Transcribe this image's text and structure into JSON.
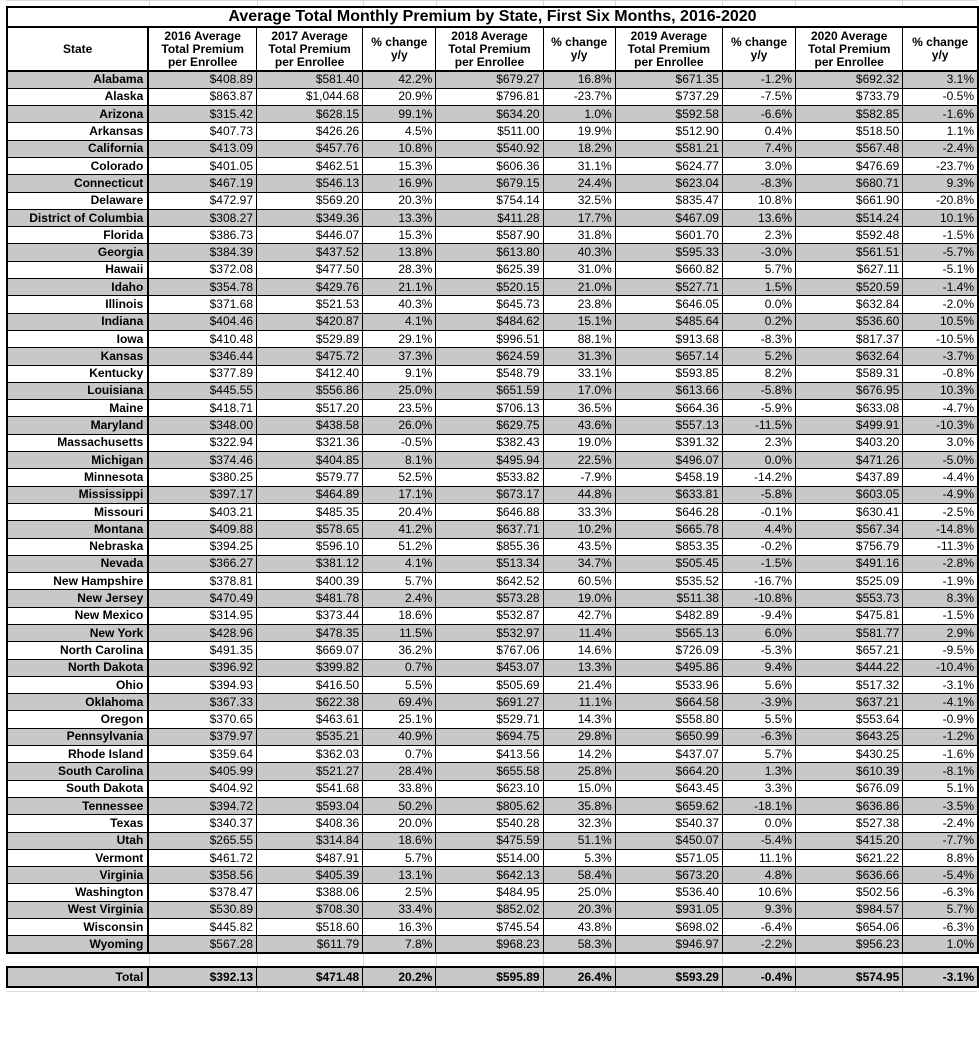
{
  "title": "Average Total Monthly Premium by State, First Six Months, 2016-2020",
  "colors": {
    "shade": "#c8c8c8",
    "border": "#000000",
    "gridline": "#d8d8d8"
  },
  "columns": [
    {
      "label": "State"
    },
    {
      "label": "2016 Average Total Premium per Enrollee"
    },
    {
      "label": "2017 Average Total Premium per Enrollee"
    },
    {
      "label": "% change y/y"
    },
    {
      "label": "2018 Average Total Premium per Enrollee"
    },
    {
      "label": "% change y/y"
    },
    {
      "label": "2019 Average Total Premium per Enrollee"
    },
    {
      "label": "% change y/y"
    },
    {
      "label": "2020 Average Total Premium per Enrollee"
    },
    {
      "label": "% change y/y"
    }
  ],
  "rows": [
    [
      "Alabama",
      "$408.89",
      "$581.40",
      "42.2%",
      "$679.27",
      "16.8%",
      "$671.35",
      "-1.2%",
      "$692.32",
      "3.1%"
    ],
    [
      "Alaska",
      "$863.87",
      "$1,044.68",
      "20.9%",
      "$796.81",
      "-23.7%",
      "$737.29",
      "-7.5%",
      "$733.79",
      "-0.5%"
    ],
    [
      "Arizona",
      "$315.42",
      "$628.15",
      "99.1%",
      "$634.20",
      "1.0%",
      "$592.58",
      "-6.6%",
      "$582.85",
      "-1.6%"
    ],
    [
      "Arkansas",
      "$407.73",
      "$426.26",
      "4.5%",
      "$511.00",
      "19.9%",
      "$512.90",
      "0.4%",
      "$518.50",
      "1.1%"
    ],
    [
      "California",
      "$413.09",
      "$457.76",
      "10.8%",
      "$540.92",
      "18.2%",
      "$581.21",
      "7.4%",
      "$567.48",
      "-2.4%"
    ],
    [
      "Colorado",
      "$401.05",
      "$462.51",
      "15.3%",
      "$606.36",
      "31.1%",
      "$624.77",
      "3.0%",
      "$476.69",
      "-23.7%"
    ],
    [
      "Connecticut",
      "$467.19",
      "$546.13",
      "16.9%",
      "$679.15",
      "24.4%",
      "$623.04",
      "-8.3%",
      "$680.71",
      "9.3%"
    ],
    [
      "Delaware",
      "$472.97",
      "$569.20",
      "20.3%",
      "$754.14",
      "32.5%",
      "$835.47",
      "10.8%",
      "$661.90",
      "-20.8%"
    ],
    [
      "District of Columbia",
      "$308.27",
      "$349.36",
      "13.3%",
      "$411.28",
      "17.7%",
      "$467.09",
      "13.6%",
      "$514.24",
      "10.1%"
    ],
    [
      "Florida",
      "$386.73",
      "$446.07",
      "15.3%",
      "$587.90",
      "31.8%",
      "$601.70",
      "2.3%",
      "$592.48",
      "-1.5%"
    ],
    [
      "Georgia",
      "$384.39",
      "$437.52",
      "13.8%",
      "$613.80",
      "40.3%",
      "$595.33",
      "-3.0%",
      "$561.51",
      "-5.7%"
    ],
    [
      "Hawaii",
      "$372.08",
      "$477.50",
      "28.3%",
      "$625.39",
      "31.0%",
      "$660.82",
      "5.7%",
      "$627.11",
      "-5.1%"
    ],
    [
      "Idaho",
      "$354.78",
      "$429.76",
      "21.1%",
      "$520.15",
      "21.0%",
      "$527.71",
      "1.5%",
      "$520.59",
      "-1.4%"
    ],
    [
      "Illinois",
      "$371.68",
      "$521.53",
      "40.3%",
      "$645.73",
      "23.8%",
      "$646.05",
      "0.0%",
      "$632.84",
      "-2.0%"
    ],
    [
      "Indiana",
      "$404.46",
      "$420.87",
      "4.1%",
      "$484.62",
      "15.1%",
      "$485.64",
      "0.2%",
      "$536.60",
      "10.5%"
    ],
    [
      "Iowa",
      "$410.48",
      "$529.89",
      "29.1%",
      "$996.51",
      "88.1%",
      "$913.68",
      "-8.3%",
      "$817.37",
      "-10.5%"
    ],
    [
      "Kansas",
      "$346.44",
      "$475.72",
      "37.3%",
      "$624.59",
      "31.3%",
      "$657.14",
      "5.2%",
      "$632.64",
      "-3.7%"
    ],
    [
      "Kentucky",
      "$377.89",
      "$412.40",
      "9.1%",
      "$548.79",
      "33.1%",
      "$593.85",
      "8.2%",
      "$589.31",
      "-0.8%"
    ],
    [
      "Louisiana",
      "$445.55",
      "$556.86",
      "25.0%",
      "$651.59",
      "17.0%",
      "$613.66",
      "-5.8%",
      "$676.95",
      "10.3%"
    ],
    [
      "Maine",
      "$418.71",
      "$517.20",
      "23.5%",
      "$706.13",
      "36.5%",
      "$664.36",
      "-5.9%",
      "$633.08",
      "-4.7%"
    ],
    [
      "Maryland",
      "$348.00",
      "$438.58",
      "26.0%",
      "$629.75",
      "43.6%",
      "$557.13",
      "-11.5%",
      "$499.91",
      "-10.3%"
    ],
    [
      "Massachusetts",
      "$322.94",
      "$321.36",
      "-0.5%",
      "$382.43",
      "19.0%",
      "$391.32",
      "2.3%",
      "$403.20",
      "3.0%"
    ],
    [
      "Michigan",
      "$374.46",
      "$404.85",
      "8.1%",
      "$495.94",
      "22.5%",
      "$496.07",
      "0.0%",
      "$471.26",
      "-5.0%"
    ],
    [
      "Minnesota",
      "$380.25",
      "$579.77",
      "52.5%",
      "$533.82",
      "-7.9%",
      "$458.19",
      "-14.2%",
      "$437.89",
      "-4.4%"
    ],
    [
      "Mississippi",
      "$397.17",
      "$464.89",
      "17.1%",
      "$673.17",
      "44.8%",
      "$633.81",
      "-5.8%",
      "$603.05",
      "-4.9%"
    ],
    [
      "Missouri",
      "$403.21",
      "$485.35",
      "20.4%",
      "$646.88",
      "33.3%",
      "$646.28",
      "-0.1%",
      "$630.41",
      "-2.5%"
    ],
    [
      "Montana",
      "$409.88",
      "$578.65",
      "41.2%",
      "$637.71",
      "10.2%",
      "$665.78",
      "4.4%",
      "$567.34",
      "-14.8%"
    ],
    [
      "Nebraska",
      "$394.25",
      "$596.10",
      "51.2%",
      "$855.36",
      "43.5%",
      "$853.35",
      "-0.2%",
      "$756.79",
      "-11.3%"
    ],
    [
      "Nevada",
      "$366.27",
      "$381.12",
      "4.1%",
      "$513.34",
      "34.7%",
      "$505.45",
      "-1.5%",
      "$491.16",
      "-2.8%"
    ],
    [
      "New Hampshire",
      "$378.81",
      "$400.39",
      "5.7%",
      "$642.52",
      "60.5%",
      "$535.52",
      "-16.7%",
      "$525.09",
      "-1.9%"
    ],
    [
      "New Jersey",
      "$470.49",
      "$481.78",
      "2.4%",
      "$573.28",
      "19.0%",
      "$511.38",
      "-10.8%",
      "$553.73",
      "8.3%"
    ],
    [
      "New Mexico",
      "$314.95",
      "$373.44",
      "18.6%",
      "$532.87",
      "42.7%",
      "$482.89",
      "-9.4%",
      "$475.81",
      "-1.5%"
    ],
    [
      "New York",
      "$428.96",
      "$478.35",
      "11.5%",
      "$532.97",
      "11.4%",
      "$565.13",
      "6.0%",
      "$581.77",
      "2.9%"
    ],
    [
      "North Carolina",
      "$491.35",
      "$669.07",
      "36.2%",
      "$767.06",
      "14.6%",
      "$726.09",
      "-5.3%",
      "$657.21",
      "-9.5%"
    ],
    [
      "North Dakota",
      "$396.92",
      "$399.82",
      "0.7%",
      "$453.07",
      "13.3%",
      "$495.86",
      "9.4%",
      "$444.22",
      "-10.4%"
    ],
    [
      "Ohio",
      "$394.93",
      "$416.50",
      "5.5%",
      "$505.69",
      "21.4%",
      "$533.96",
      "5.6%",
      "$517.32",
      "-3.1%"
    ],
    [
      "Oklahoma",
      "$367.33",
      "$622.38",
      "69.4%",
      "$691.27",
      "11.1%",
      "$664.58",
      "-3.9%",
      "$637.21",
      "-4.1%"
    ],
    [
      "Oregon",
      "$370.65",
      "$463.61",
      "25.1%",
      "$529.71",
      "14.3%",
      "$558.80",
      "5.5%",
      "$553.64",
      "-0.9%"
    ],
    [
      "Pennsylvania",
      "$379.97",
      "$535.21",
      "40.9%",
      "$694.75",
      "29.8%",
      "$650.99",
      "-6.3%",
      "$643.25",
      "-1.2%"
    ],
    [
      "Rhode Island",
      "$359.64",
      "$362.03",
      "0.7%",
      "$413.56",
      "14.2%",
      "$437.07",
      "5.7%",
      "$430.25",
      "-1.6%"
    ],
    [
      "South Carolina",
      "$405.99",
      "$521.27",
      "28.4%",
      "$655.58",
      "25.8%",
      "$664.20",
      "1.3%",
      "$610.39",
      "-8.1%"
    ],
    [
      "South Dakota",
      "$404.92",
      "$541.68",
      "33.8%",
      "$623.10",
      "15.0%",
      "$643.45",
      "3.3%",
      "$676.09",
      "5.1%"
    ],
    [
      "Tennessee",
      "$394.72",
      "$593.04",
      "50.2%",
      "$805.62",
      "35.8%",
      "$659.62",
      "-18.1%",
      "$636.86",
      "-3.5%"
    ],
    [
      "Texas",
      "$340.37",
      "$408.36",
      "20.0%",
      "$540.28",
      "32.3%",
      "$540.37",
      "0.0%",
      "$527.38",
      "-2.4%"
    ],
    [
      "Utah",
      "$265.55",
      "$314.84",
      "18.6%",
      "$475.59",
      "51.1%",
      "$450.07",
      "-5.4%",
      "$415.20",
      "-7.7%"
    ],
    [
      "Vermont",
      "$461.72",
      "$487.91",
      "5.7%",
      "$514.00",
      "5.3%",
      "$571.05",
      "11.1%",
      "$621.22",
      "8.8%"
    ],
    [
      "Virginia",
      "$358.56",
      "$405.39",
      "13.1%",
      "$642.13",
      "58.4%",
      "$673.20",
      "4.8%",
      "$636.66",
      "-5.4%"
    ],
    [
      "Washington",
      "$378.47",
      "$388.06",
      "2.5%",
      "$484.95",
      "25.0%",
      "$536.40",
      "10.6%",
      "$502.56",
      "-6.3%"
    ],
    [
      "West Virginia",
      "$530.89",
      "$708.30",
      "33.4%",
      "$852.02",
      "20.3%",
      "$931.05",
      "9.3%",
      "$984.57",
      "5.7%"
    ],
    [
      "Wisconsin",
      "$445.82",
      "$518.60",
      "16.3%",
      "$745.54",
      "43.8%",
      "$698.02",
      "-6.4%",
      "$654.06",
      "-6.3%"
    ],
    [
      "Wyoming",
      "$567.28",
      "$611.79",
      "7.8%",
      "$968.23",
      "58.3%",
      "$946.97",
      "-2.2%",
      "$956.23",
      "1.0%"
    ]
  ],
  "total_row": [
    "Total",
    "$392.13",
    "$471.48",
    "20.2%",
    "$595.89",
    "26.4%",
    "$593.29",
    "-0.4%",
    "$574.95",
    "-3.1%"
  ]
}
